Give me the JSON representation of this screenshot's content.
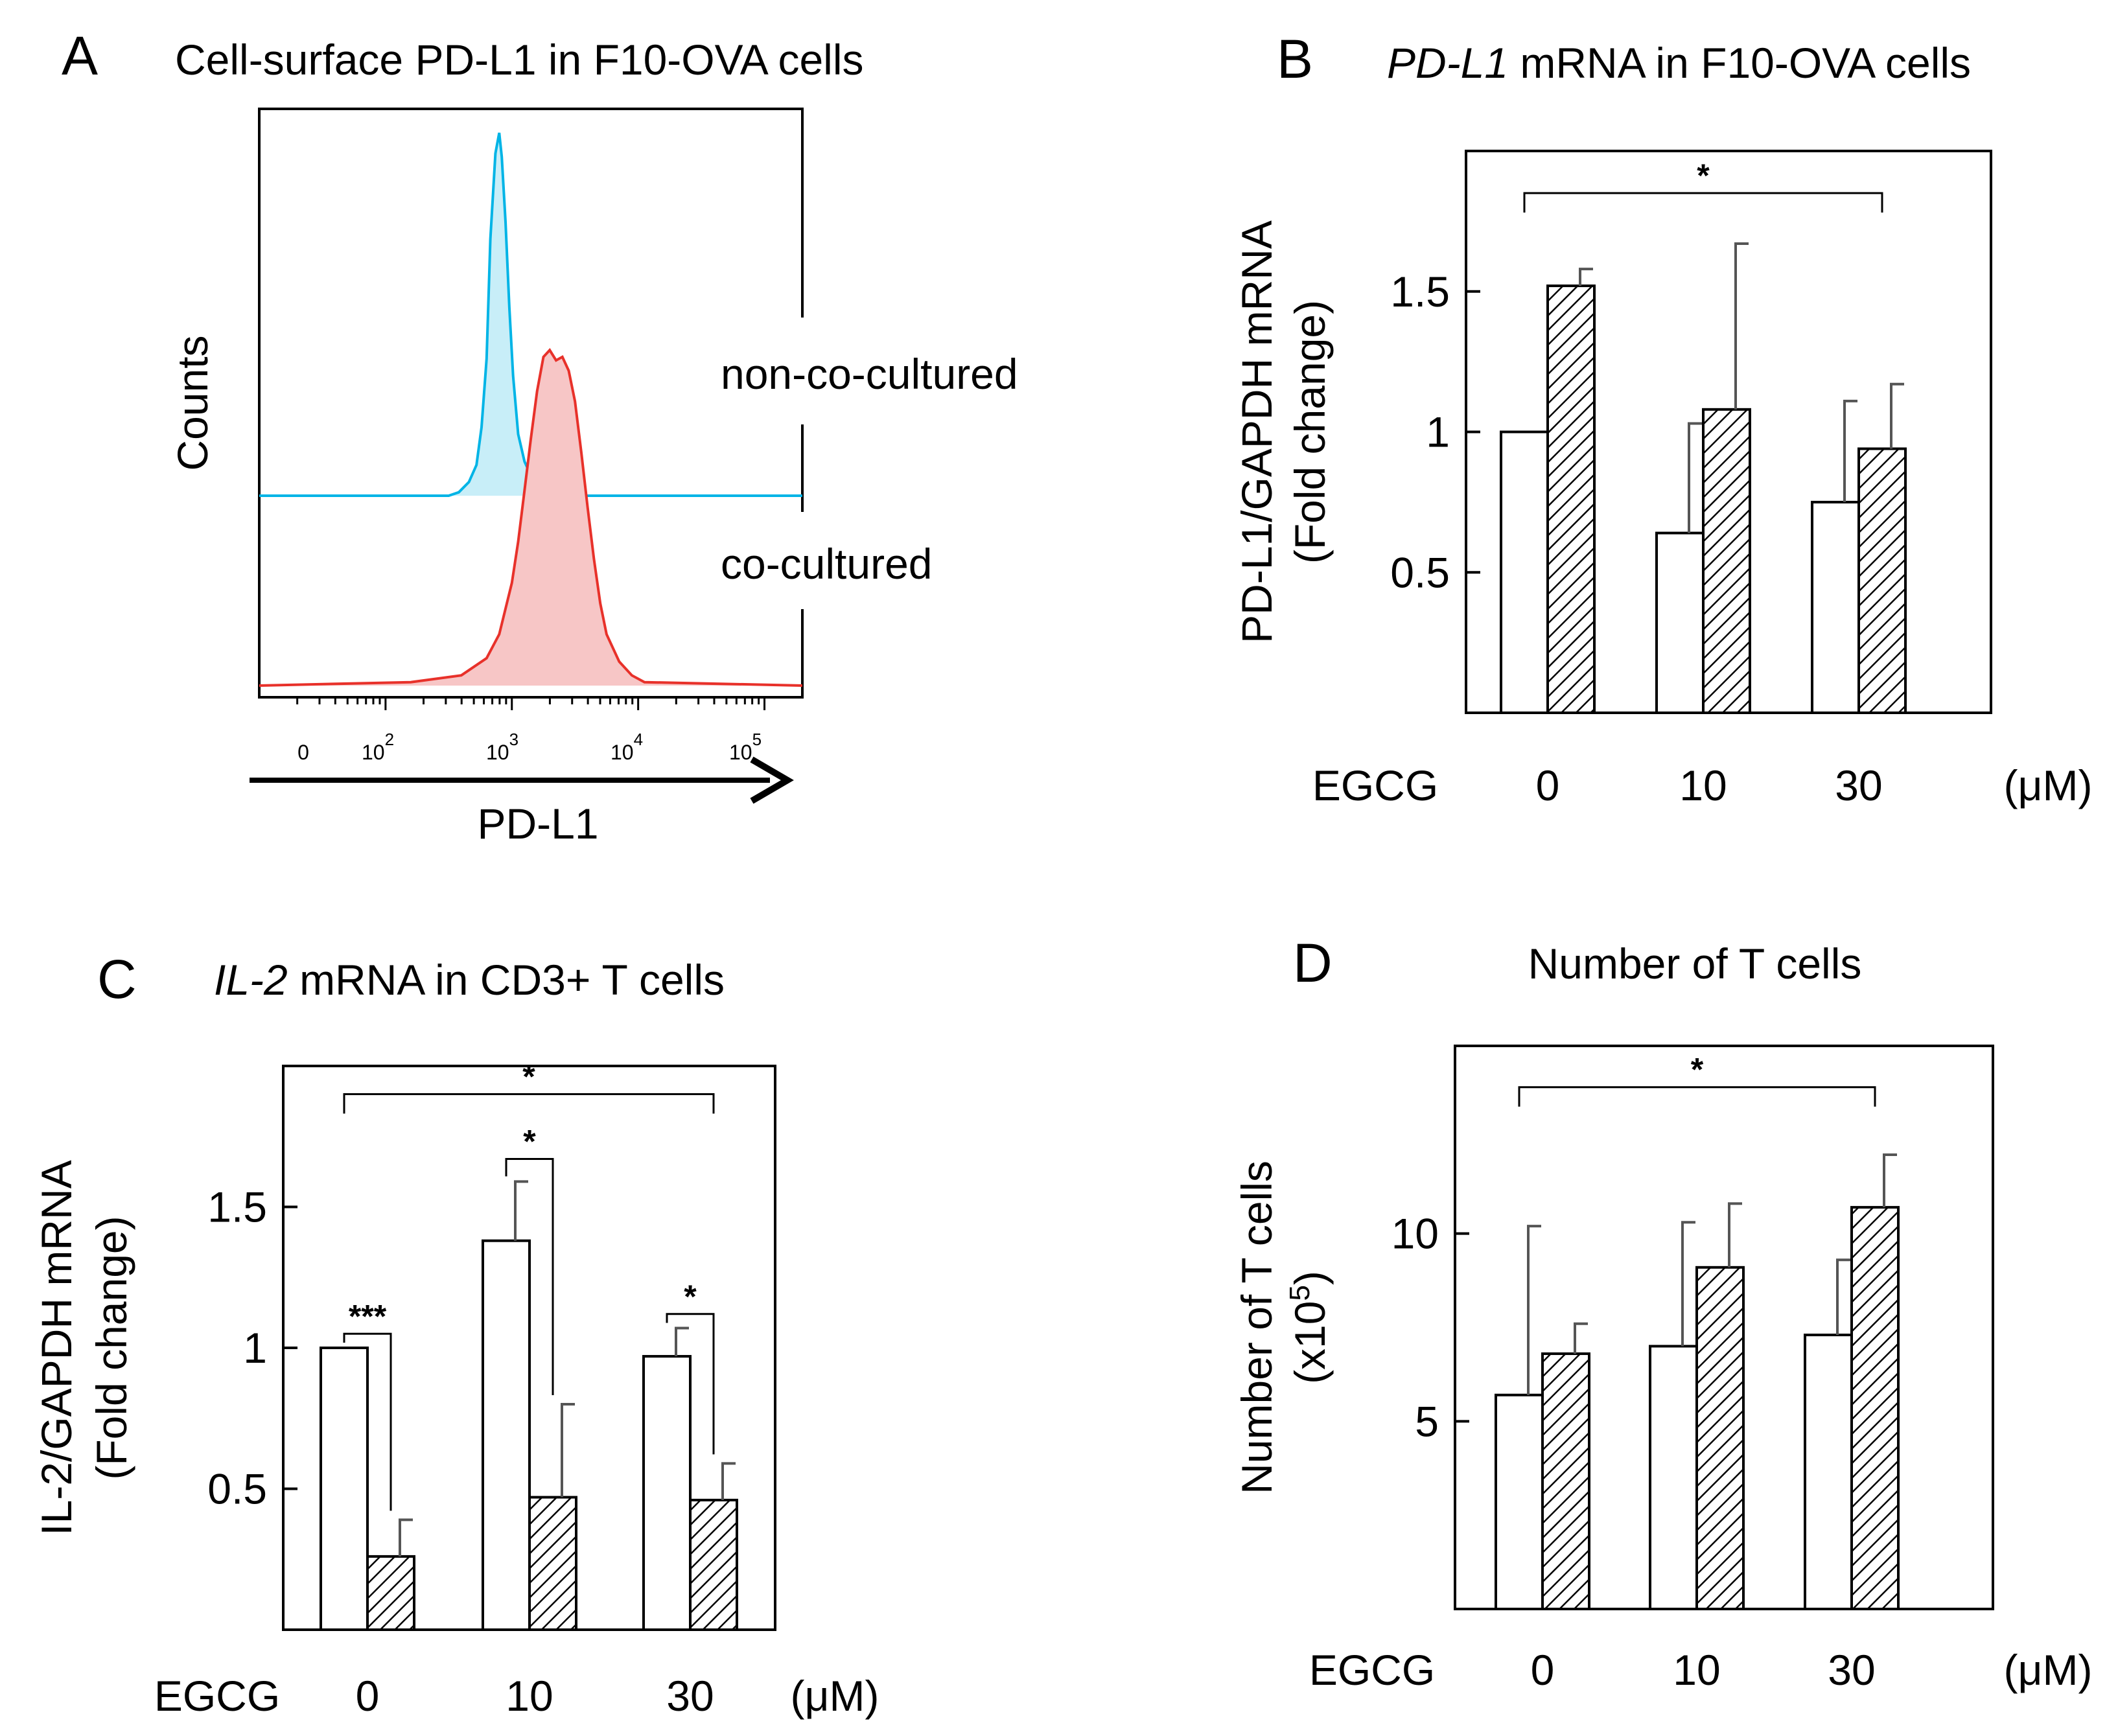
{
  "panels": {
    "A": {
      "letter": "A",
      "title": "Cell-surface PD-L1 in F10-OVA cells"
    },
    "B": {
      "letter": "B",
      "title_italic": "PD-L1",
      "title_rest": " mRNA in F10-OVA cells"
    },
    "C": {
      "letter": "C",
      "title_italic": "IL-2",
      "title_rest": " mRNA in CD3+ T cells"
    },
    "D": {
      "letter": "D",
      "title": "Number of T cells"
    }
  },
  "colors": {
    "histogram_non_cocultured_line": "#00b4e6",
    "histogram_non_cocultured_fill": "#c8eef8",
    "histogram_cocultured_line": "#e8312a",
    "histogram_cocultured_fill": "#f7c6c6",
    "bar_outline": "#000000",
    "error_bar": "#555555"
  },
  "chart_data": [
    {
      "panel": "A",
      "type": "area",
      "title": "Cell-surface PD-L1 in F10-OVA cells",
      "xlabel": "PD-L1",
      "ylabel": "Counts",
      "xscale": "log",
      "xtick_labels": [
        {
          "value": 0,
          "base": "0",
          "exp": ""
        },
        {
          "value": 100,
          "base": "10",
          "exp": "2"
        },
        {
          "value": 1000,
          "base": "10",
          "exp": "3"
        },
        {
          "value": 10000,
          "base": "10",
          "exp": "4"
        },
        {
          "value": 100000,
          "base": "10",
          "exp": "5"
        }
      ],
      "series": [
        {
          "name": "non-co-cultured",
          "label": "non-co-cultured",
          "x_log10": [
            1.0,
            2.5,
            2.58,
            2.66,
            2.72,
            2.76,
            2.8,
            2.83,
            2.87,
            2.9,
            2.92,
            2.95,
            2.98,
            3.01,
            3.05,
            3.1,
            3.15,
            3.2,
            3.3,
            3.4,
            5.3
          ],
          "y": [
            0,
            0,
            1,
            4,
            9,
            20,
            40,
            75,
            100,
            106,
            99,
            80,
            55,
            35,
            18,
            10,
            6,
            3,
            1,
            0,
            0
          ]
        },
        {
          "name": "co-cultured",
          "label": "co-cultured",
          "x_log10": [
            1.0,
            2.2,
            2.6,
            2.8,
            2.9,
            3.0,
            3.05,
            3.1,
            3.15,
            3.2,
            3.25,
            3.3,
            3.35,
            3.4,
            3.45,
            3.5,
            3.55,
            3.6,
            3.65,
            3.7,
            3.75,
            3.85,
            3.95,
            4.05,
            5.3
          ],
          "y": [
            0,
            1,
            3,
            8,
            15,
            30,
            42,
            57,
            72,
            86,
            96,
            98,
            95,
            96,
            92,
            83,
            68,
            52,
            37,
            24,
            15,
            7,
            3,
            1,
            0
          ]
        }
      ]
    },
    {
      "panel": "B",
      "type": "bar",
      "title": "PD-L1 mRNA in F10-OVA cells",
      "ylabel_line1": "PD-L1/GAPDH mRNA",
      "ylabel_line2": "(Fold change)",
      "xaxis_prefix": "EGCG",
      "xaxis_unit": "(μM)",
      "categories": [
        "0",
        "10",
        "30"
      ],
      "ylim": [
        0,
        2.0
      ],
      "yticks": [
        0.5,
        1,
        1.5
      ],
      "ytick_labels": [
        "0.5",
        "1",
        "1.5"
      ],
      "series": [
        {
          "name": "open",
          "pattern": "none",
          "values": [
            1.0,
            0.64,
            0.75
          ],
          "errors": [
            0,
            0.39,
            0.36
          ]
        },
        {
          "name": "hatched",
          "pattern": "hatch",
          "values": [
            1.52,
            1.08,
            0.94
          ],
          "errors": [
            0.06,
            0.59,
            0.23
          ]
        }
      ],
      "significance": [
        {
          "from": [
            0,
            0
          ],
          "to": [
            2,
            1
          ],
          "label": "*",
          "level": 1.85
        }
      ]
    },
    {
      "panel": "C",
      "type": "bar",
      "title": "IL-2 mRNA in CD3+ T cells",
      "ylabel_line1": "IL-2/GAPDH mRNA",
      "ylabel_line2": "(Fold change)",
      "xaxis_prefix": "EGCG",
      "xaxis_unit": "(μM)",
      "categories": [
        "0",
        "10",
        "30"
      ],
      "ylim": [
        0,
        2.0
      ],
      "yticks": [
        0.5,
        1,
        1.5
      ],
      "ytick_labels": [
        "0.5",
        "1",
        "1.5"
      ],
      "series": [
        {
          "name": "open",
          "pattern": "none",
          "values": [
            1.0,
            1.38,
            0.97
          ],
          "errors": [
            0,
            0.21,
            0.1
          ]
        },
        {
          "name": "hatched",
          "pattern": "hatch",
          "values": [
            0.26,
            0.47,
            0.46
          ],
          "errors": [
            0.13,
            0.33,
            0.13
          ]
        }
      ],
      "significance": [
        {
          "from": [
            0,
            0
          ],
          "to": [
            0,
            1
          ],
          "label": "***",
          "level": 1.05
        },
        {
          "from": [
            1,
            0
          ],
          "to": [
            1,
            1
          ],
          "label": "*",
          "level": 1.67
        },
        {
          "from": [
            2,
            0
          ],
          "to": [
            2,
            1
          ],
          "label": "*",
          "level": 1.12
        },
        {
          "from": [
            0,
            0
          ],
          "to": [
            2,
            1
          ],
          "label": "*",
          "level": 1.9
        }
      ]
    },
    {
      "panel": "D",
      "type": "bar",
      "title": "Number of T cells",
      "ylabel_line1": "Number of T cells",
      "ylabel_line2_base": "(x10",
      "ylabel_line2_exp": "5",
      "ylabel_line2_end": ")",
      "xaxis_prefix": "EGCG",
      "xaxis_unit": "(μM)",
      "categories": [
        "0",
        "10",
        "30"
      ],
      "ylim": [
        0,
        15
      ],
      "yticks": [
        5,
        10
      ],
      "ytick_labels": [
        "5",
        "10"
      ],
      "series": [
        {
          "name": "open",
          "pattern": "none",
          "values": [
            5.7,
            7.0,
            7.3
          ],
          "errors": [
            4.5,
            3.3,
            2.0
          ]
        },
        {
          "name": "hatched",
          "pattern": "hatch",
          "values": [
            6.8,
            9.1,
            10.7
          ],
          "errors": [
            0.8,
            1.7,
            1.4
          ]
        }
      ],
      "significance": [
        {
          "from": [
            0,
            0
          ],
          "to": [
            2,
            1
          ],
          "label": "*",
          "level": 13.9
        }
      ]
    }
  ]
}
